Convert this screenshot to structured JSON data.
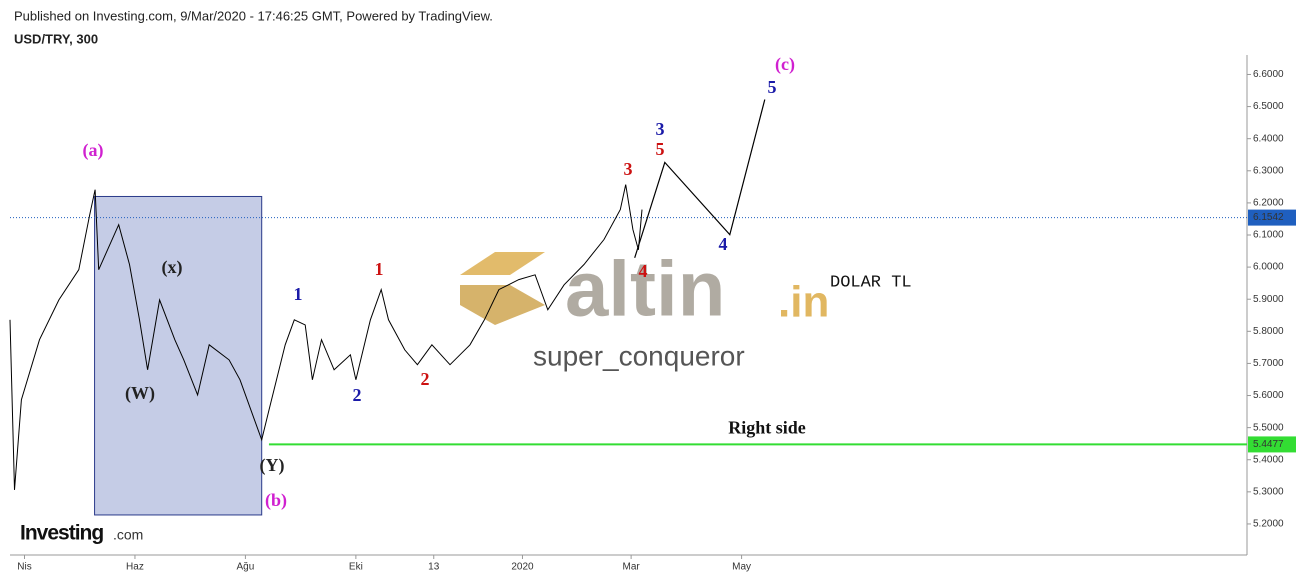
{
  "chart_data": {
    "type": "line",
    "published": "Published on Investing.com, 9/Mar/2020 - 17:46:25 GMT, Powered by TradingView.",
    "title": "USD/TRY, 300",
    "brand": "Investing",
    "brand_suffix": ".com",
    "watermark": "altin",
    "watermark_suffix": ".in",
    "author": "super_conqueror",
    "color": "#000000",
    "x": [
      -8,
      -5.5,
      -1.7,
      8.3,
      19,
      30,
      36,
      39,
      41,
      52,
      58,
      63.5,
      68,
      74.6,
      83,
      88,
      95.6,
      102,
      113,
      119,
      127,
      131,
      135,
      144,
      149,
      155,
      159,
      164,
      171,
      180,
      183,
      191,
      197,
      201,
      210,
      217,
      225,
      235,
      246,
      254,
      262,
      273,
      282,
      289,
      298,
      309,
      320,
      329,
      332,
      336,
      339,
      341
    ],
    "values": [
      5.836,
      5.306,
      5.587,
      5.774,
      5.898,
      5.992,
      6.163,
      6.241,
      5.992,
      6.132,
      6.008,
      5.836,
      5.68,
      5.898,
      5.774,
      5.711,
      5.602,
      5.758,
      5.711,
      5.649,
      5.524,
      5.462,
      5.555,
      5.758,
      5.836,
      5.82,
      5.649,
      5.774,
      5.68,
      5.727,
      5.649,
      5.836,
      5.93,
      5.836,
      5.742,
      5.696,
      5.758,
      5.696,
      5.758,
      5.836,
      5.93,
      5.961,
      5.976,
      5.867,
      5.945,
      6.008,
      6.086,
      6.179,
      6.257,
      6.117,
      6.054,
      6.179
    ],
    "projection": {
      "color": "#000000",
      "x": [
        337,
        353.6,
        389.5,
        408.8
      ],
      "values": [
        6.029,
        6.326,
        6.101,
        6.522
      ]
    },
    "box": {
      "color": "#c5cce6",
      "x": [
        38.7,
        131
      ],
      "y": [
        5.228,
        6.22
      ]
    },
    "price_line": {
      "value": 6.1542,
      "color": "#1f5fbf"
    },
    "support_line": {
      "value": 5.4477,
      "x_start": 135,
      "color": "#33dd33",
      "label": "Right side"
    },
    "annotations": [
      {
        "text": "(a)",
        "color": "#d020d0"
      },
      {
        "text": "(x)",
        "color": "#222222"
      },
      {
        "text": "(W)",
        "color": "#222222"
      },
      {
        "text": "(Y)",
        "color": "#222222"
      },
      {
        "text": "(b)",
        "color": "#d020d0"
      },
      {
        "text": "1",
        "color": "#1a1aa8"
      },
      {
        "text": "2",
        "color": "#1a1aa8"
      },
      {
        "text": "1",
        "color": "#cc1111"
      },
      {
        "text": "2",
        "color": "#cc1111"
      },
      {
        "text": "3",
        "color": "#cc1111"
      },
      {
        "text": "4",
        "color": "#cc1111"
      },
      {
        "text": "3",
        "color": "#1a1aa8"
      },
      {
        "text": "5",
        "color": "#cc1111"
      },
      {
        "text": "4",
        "color": "#1a1aa8"
      },
      {
        "text": "5",
        "color": "#1a1aa8"
      },
      {
        "text": "(c)",
        "color": "#d020d0"
      }
    ],
    "note": "DOLAR TL",
    "xlim": [
      -8,
      674
    ],
    "xticks": [
      {
        "value": 0,
        "label": "Nis"
      },
      {
        "value": 61,
        "label": "Haz"
      },
      {
        "value": 122,
        "label": "Ağu"
      },
      {
        "value": 183,
        "label": "Eki"
      },
      {
        "value": 226,
        "label": "13"
      },
      {
        "value": 275,
        "label": "2020"
      },
      {
        "value": 335,
        "label": "Mar"
      },
      {
        "value": 396,
        "label": "May"
      }
    ],
    "ylim": [
      5.15,
      6.67
    ],
    "yticks": [
      {
        "value": 5.2,
        "label": "5.2000"
      },
      {
        "value": 5.3,
        "label": "5.3000"
      },
      {
        "value": 5.4,
        "label": "5.4000"
      },
      {
        "value": 5.5,
        "label": "5.5000"
      },
      {
        "value": 5.6,
        "label": "5.6000"
      },
      {
        "value": 5.7,
        "label": "5.7000"
      },
      {
        "value": 5.8,
        "label": "5.8000"
      },
      {
        "value": 5.9,
        "label": "5.9000"
      },
      {
        "value": 6.0,
        "label": "6.0000"
      },
      {
        "value": 6.1,
        "label": "6.1000"
      },
      {
        "value": 6.2,
        "label": "6.2000"
      },
      {
        "value": 6.3,
        "label": "6.3000"
      },
      {
        "value": 6.4,
        "label": "6.4000"
      },
      {
        "value": 6.5,
        "label": "6.5000"
      },
      {
        "value": 6.6,
        "label": "6.6000"
      }
    ]
  }
}
